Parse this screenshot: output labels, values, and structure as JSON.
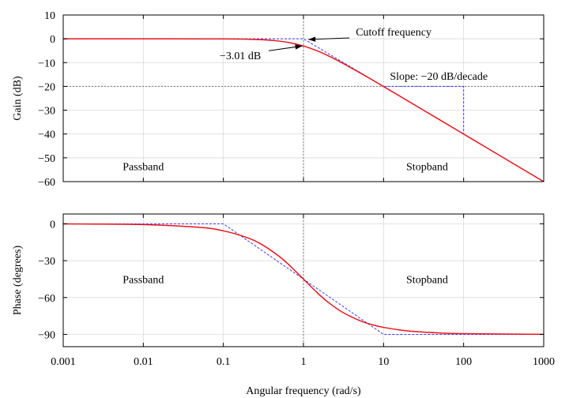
{
  "chart_data": [
    {
      "type": "line",
      "panel": "gain",
      "ylabel": "Gain (dB)",
      "x_scale": "log",
      "xlim": [
        0.001,
        1000
      ],
      "ylim": [
        -60,
        10
      ],
      "yticks": [
        10,
        0,
        -10,
        -20,
        -30,
        -40,
        -50,
        -60
      ],
      "ytick_labels": [
        "10",
        "0",
        "−10",
        "−20",
        "−30",
        "−40",
        "−50",
        "−60"
      ],
      "grid": true,
      "series": [
        {
          "role": "magnitude",
          "color": "#e8141c",
          "style": "solid",
          "x": [
            0.001,
            0.01,
            0.1,
            0.2,
            0.3,
            0.5,
            0.7,
            1,
            1.5,
            2,
            3,
            5,
            7,
            10,
            20,
            50,
            100,
            200,
            500,
            1000
          ],
          "y": [
            0,
            0,
            -0.04,
            -0.17,
            -0.37,
            -0.97,
            -1.73,
            -3.01,
            -5.12,
            -6.99,
            -10,
            -14.15,
            -17.0,
            -20.04,
            -26.03,
            -33.98,
            -40.0,
            -46.02,
            -53.98,
            -60.0
          ]
        },
        {
          "role": "asymptote",
          "color": "#3a3aff",
          "style": "dashed",
          "x": [
            0.001,
            1,
            1000
          ],
          "y": [
            0,
            0,
            -60
          ]
        }
      ],
      "reference_lines": [
        {
          "orientation": "vertical",
          "x": 1
        },
        {
          "orientation": "horizontal",
          "y": -20
        }
      ],
      "slope_triangle": {
        "x": [
          10,
          100,
          100
        ],
        "y": [
          -20,
          -20,
          -40
        ]
      },
      "annotations": [
        {
          "name": "cutoff",
          "text": "Cutoff frequency",
          "x": 4.5,
          "y": 1.7,
          "arrow_to": [
            1.15,
            -0.3
          ]
        },
        {
          "name": "minus3db",
          "text": "−3.01 dB",
          "x": 0.09,
          "y": -7.0,
          "arrow_to": [
            0.97,
            -3.01
          ]
        },
        {
          "name": "slope",
          "text": "Slope: −20 dB/decade",
          "x": 12,
          "y": -15.5
        }
      ],
      "regions": [
        {
          "text": "Passband",
          "x": 0.01,
          "y": -53.5
        },
        {
          "text": "Stopband",
          "x": 35,
          "y": -53.5
        }
      ]
    },
    {
      "type": "line",
      "panel": "phase",
      "xlabel": "Angular frequency (rad/s)",
      "ylabel": "Phase (degrees)",
      "x_scale": "log",
      "xlim": [
        0.001,
        1000
      ],
      "ylim": [
        -100,
        8
      ],
      "xticks": [
        0.001,
        0.01,
        0.1,
        1,
        10,
        100,
        1000
      ],
      "xtick_labels": [
        "0.001",
        "0.01",
        "0.1",
        "1",
        "10",
        "100",
        "1000"
      ],
      "yticks": [
        0,
        -30,
        -60,
        -90
      ],
      "ytick_labels": [
        "0",
        "−30",
        "−60",
        "−90"
      ],
      "grid": true,
      "series": [
        {
          "role": "phase",
          "color": "#e8141c",
          "style": "solid",
          "x": [
            0.001,
            0.01,
            0.05,
            0.1,
            0.2,
            0.3,
            0.5,
            0.7,
            1,
            1.5,
            2,
            3,
            5,
            7,
            10,
            20,
            50,
            100,
            1000
          ],
          "y": [
            -0.06,
            -0.57,
            -2.86,
            -5.71,
            -11.31,
            -16.7,
            -26.57,
            -34.99,
            -45.0,
            -56.31,
            -63.43,
            -71.57,
            -78.69,
            -81.87,
            -84.29,
            -87.14,
            -88.85,
            -89.43,
            -89.94
          ]
        },
        {
          "role": "asymptote",
          "color": "#3a3aff",
          "style": "dashed",
          "x": [
            0.001,
            0.1,
            10,
            1000
          ],
          "y": [
            0,
            0,
            -90,
            -90
          ]
        }
      ],
      "reference_lines": [
        {
          "orientation": "vertical",
          "x": 1
        }
      ],
      "regions": [
        {
          "text": "Passband",
          "x": 0.01,
          "y": -45
        },
        {
          "text": "Stopband",
          "x": 35,
          "y": -45
        }
      ]
    }
  ]
}
